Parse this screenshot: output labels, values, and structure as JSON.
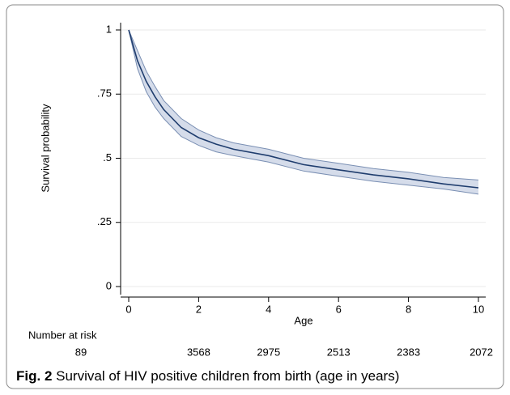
{
  "chart_data": {
    "type": "survival",
    "ylabel": "Survival probability",
    "xlabel": "Age",
    "x": [
      0,
      0.25,
      0.5,
      0.75,
      1,
      1.5,
      2,
      2.5,
      3,
      4,
      5,
      6,
      7,
      8,
      9,
      10
    ],
    "series": [
      {
        "color": "#1f3d6e",
        "values": [
          1,
          0.88,
          0.8,
          0.74,
          0.69,
          0.62,
          0.58,
          0.555,
          0.535,
          0.51,
          0.475,
          0.455,
          0.435,
          0.42,
          0.4,
          0.385
        ]
      },
      {
        "color": "#7a8fb3",
        "values": [
          1,
          0.92,
          0.84,
          0.78,
          0.725,
          0.655,
          0.61,
          0.58,
          0.56,
          0.535,
          0.5,
          0.48,
          0.46,
          0.445,
          0.425,
          0.415
        ]
      },
      {
        "color": "#7a8fb3",
        "values": [
          1,
          0.85,
          0.76,
          0.7,
          0.655,
          0.585,
          0.55,
          0.525,
          0.51,
          0.485,
          0.45,
          0.43,
          0.41,
          0.395,
          0.38,
          0.36
        ]
      }
    ],
    "band_color": "#d5dcea",
    "xlim": [
      0,
      10
    ],
    "xticks": [
      0,
      2,
      4,
      6,
      8,
      10
    ],
    "ylim": [
      0,
      1
    ],
    "yticks": [
      0,
      {
        "value": 0.25,
        "label": ".25"
      },
      {
        "value": 0.5,
        "label": ".5"
      },
      {
        "value": 0.75,
        "label": ".75"
      },
      1
    ],
    "grid": true,
    "at_risk": {
      "label": "Number at risk",
      "values": [
        89,
        3568,
        2975,
        2513,
        2383,
        2072
      ]
    },
    "caption": {
      "label": "Fig. 2",
      "text": "Survival of HIV positive children from birth (age in years)"
    }
  }
}
